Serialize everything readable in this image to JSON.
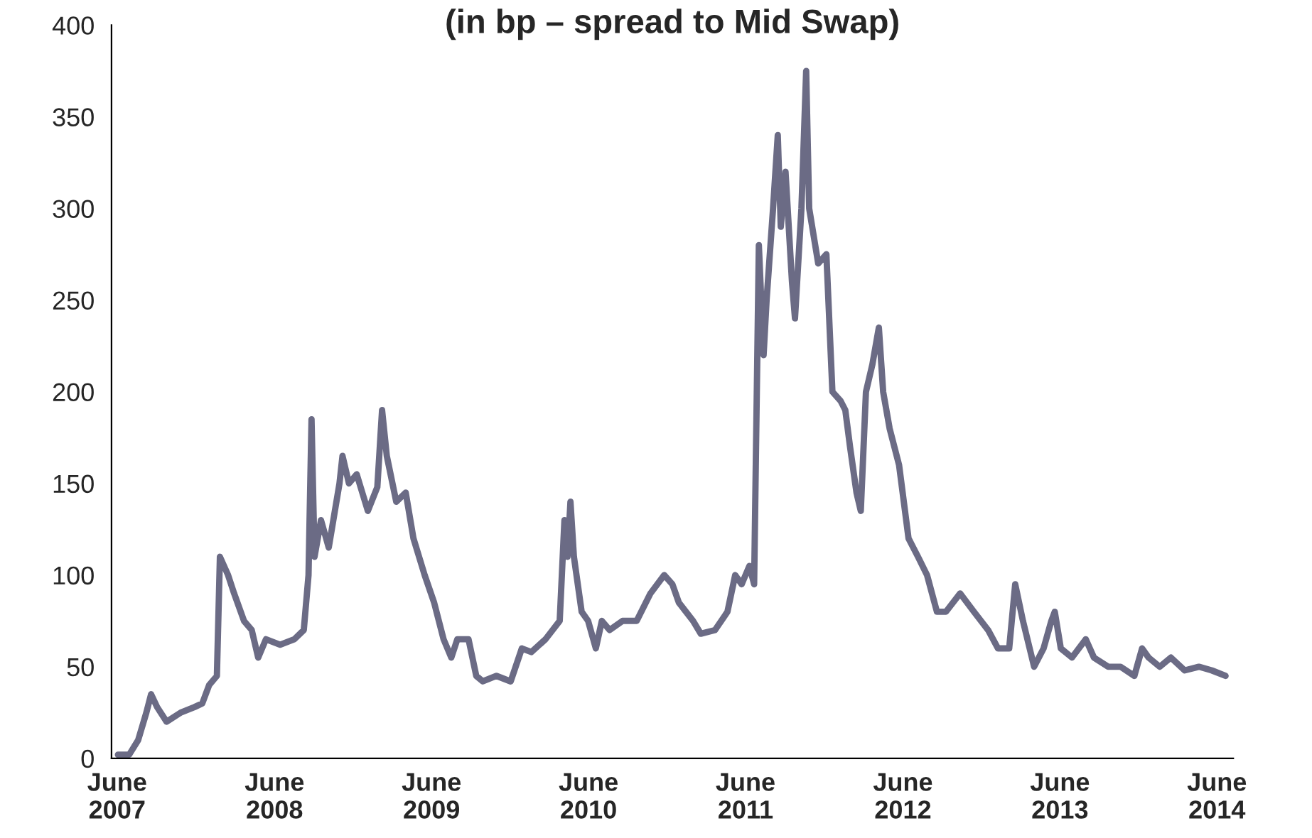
{
  "chart_data": {
    "type": "line",
    "title": "(in bp – spread to Mid Swap)",
    "xlim": [
      "2007-05-19",
      "2014-07-09"
    ],
    "ylim": [
      0,
      400
    ],
    "yticks": [
      0,
      50,
      100,
      150,
      200,
      250,
      300,
      350,
      400
    ],
    "xticks": [
      {
        "value": "2007-06-01",
        "label": "June\n2007"
      },
      {
        "value": "2008-06-01",
        "label": "June\n2008"
      },
      {
        "value": "2009-06-01",
        "label": "June\n2009"
      },
      {
        "value": "2010-06-01",
        "label": "June\n2010"
      },
      {
        "value": "2011-06-01",
        "label": "June\n2011"
      },
      {
        "value": "2012-06-01",
        "label": "June\n2012"
      },
      {
        "value": "2013-06-01",
        "label": "June\n2013"
      },
      {
        "value": "2014-06-01",
        "label": "June\n2014"
      }
    ],
    "grid": false,
    "legend": false,
    "marker": "none",
    "line_style": "solid",
    "series": [
      {
        "color": "#6b6b85",
        "x": [
          "2007-06-03",
          "2007-06-29",
          "2007-07-20",
          "2007-08-08",
          "2007-08-19",
          "2007-09-02",
          "2007-09-24",
          "2007-10-27",
          "2007-11-28",
          "2007-12-16",
          "2008-01-01",
          "2008-01-19",
          "2008-01-26",
          "2008-02-14",
          "2008-02-28",
          "2008-03-22",
          "2008-04-09",
          "2008-04-24",
          "2008-05-12",
          "2008-06-14",
          "2008-07-17",
          "2008-08-08",
          "2008-08-19",
          "2008-08-26",
          "2008-09-02",
          "2008-09-17",
          "2008-10-05",
          "2008-10-30",
          "2008-11-06",
          "2008-11-21",
          "2008-12-09",
          "2009-01-04",
          "2009-01-26",
          "2009-02-06",
          "2009-02-17",
          "2009-03-11",
          "2009-04-02",
          "2009-04-20",
          "2009-05-16",
          "2009-06-07",
          "2009-06-29",
          "2009-07-17",
          "2009-07-31",
          "2009-08-26",
          "2009-09-13",
          "2009-09-28",
          "2009-10-30",
          "2009-12-02",
          "2009-12-28",
          "2010-01-19",
          "2010-02-21",
          "2010-03-26",
          "2010-04-06",
          "2010-04-13",
          "2010-04-20",
          "2010-04-28",
          "2010-05-16",
          "2010-05-31",
          "2010-06-18",
          "2010-07-02",
          "2010-07-20",
          "2010-08-19",
          "2010-09-21",
          "2010-10-23",
          "2010-11-24",
          "2010-12-13",
          "2010-12-28",
          "2011-01-30",
          "2011-02-17",
          "2011-03-22",
          "2011-04-20",
          "2011-05-08",
          "2011-05-23",
          "2011-06-10",
          "2011-06-21",
          "2011-07-02",
          "2011-07-13",
          "2011-07-20",
          "2011-08-04",
          "2011-08-15",
          "2011-08-22",
          "2011-09-02",
          "2011-09-17",
          "2011-09-24",
          "2011-10-09",
          "2011-10-20",
          "2011-10-27",
          "2011-11-10",
          "2011-11-17",
          "2011-12-06",
          "2011-12-20",
          "2012-01-08",
          "2012-01-19",
          "2012-01-30",
          "2012-02-14",
          "2012-02-24",
          "2012-03-07",
          "2012-03-22",
          "2012-04-06",
          "2012-04-16",
          "2012-05-01",
          "2012-05-23",
          "2012-06-14",
          "2012-07-06",
          "2012-07-27",
          "2012-08-19",
          "2012-09-09",
          "2012-10-12",
          "2012-11-13",
          "2012-12-16",
          "2013-01-08",
          "2013-02-03",
          "2013-02-17",
          "2013-03-07",
          "2013-04-02",
          "2013-04-24",
          "2013-05-12",
          "2013-05-20",
          "2013-06-03",
          "2013-06-29",
          "2013-07-31",
          "2013-08-19",
          "2013-09-21",
          "2013-10-20",
          "2013-11-21",
          "2013-12-09",
          "2013-12-24",
          "2014-01-19",
          "2014-02-14",
          "2014-03-18",
          "2014-04-20",
          "2014-05-20",
          "2014-06-21"
        ],
        "values": [
          2,
          2,
          10,
          25,
          35,
          28,
          20,
          25,
          28,
          30,
          40,
          45,
          110,
          100,
          90,
          75,
          70,
          55,
          65,
          62,
          65,
          70,
          100,
          185,
          110,
          130,
          115,
          150,
          165,
          150,
          155,
          135,
          148,
          190,
          165,
          140,
          145,
          120,
          100,
          85,
          65,
          55,
          65,
          65,
          45,
          42,
          45,
          42,
          60,
          58,
          65,
          75,
          130,
          110,
          140,
          110,
          80,
          75,
          60,
          75,
          70,
          75,
          75,
          90,
          100,
          95,
          85,
          75,
          68,
          70,
          80,
          100,
          95,
          105,
          95,
          280,
          220,
          250,
          300,
          340,
          290,
          320,
          260,
          240,
          300,
          375,
          300,
          280,
          270,
          275,
          200,
          195,
          190,
          170,
          145,
          135,
          200,
          215,
          235,
          200,
          180,
          160,
          120,
          110,
          100,
          80,
          80,
          90,
          80,
          70,
          60,
          60,
          95,
          75,
          50,
          60,
          75,
          80,
          60,
          55,
          65,
          55,
          50,
          50,
          45,
          60,
          55,
          50,
          55,
          48,
          50,
          48,
          45
        ]
      }
    ]
  }
}
